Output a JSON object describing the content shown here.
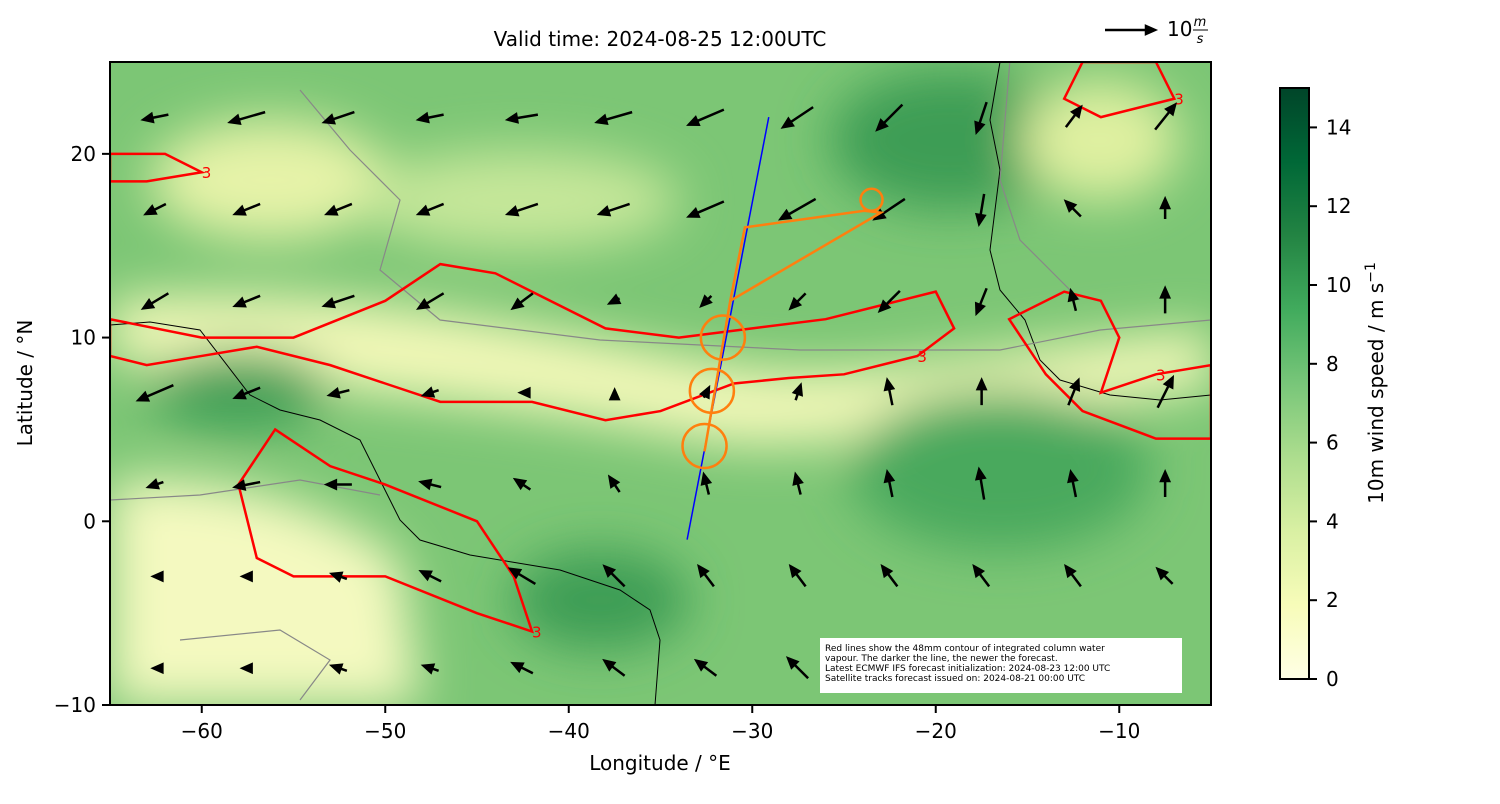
{
  "chart_data": {
    "type": "map",
    "title": "Valid time: 2024-08-25 12:00UTC",
    "xlabel": "Longitude / °E",
    "ylabel": "Latitude / °N",
    "xlim": [
      -65,
      -5
    ],
    "ylim": [
      -10,
      25
    ],
    "xticks": [
      {
        "value": -60,
        "label": "−60"
      },
      {
        "value": -50,
        "label": "−50"
      },
      {
        "value": -40,
        "label": "−40"
      },
      {
        "value": -30,
        "label": "−30"
      },
      {
        "value": -20,
        "label": "−20"
      },
      {
        "value": -10,
        "label": "−10"
      }
    ],
    "yticks": [
      {
        "value": -10,
        "label": "−10"
      },
      0,
      10,
      20
    ],
    "colorbar": {
      "label": "10m wind speed / m s",
      "label_sup": "−1",
      "lim": [
        0,
        15
      ],
      "ticks": [
        0,
        2,
        4,
        6,
        8,
        10,
        12,
        14
      ],
      "colors": [
        "#ffffe5",
        "#f7fcb9",
        "#d9f0a3",
        "#addd8e",
        "#78c679",
        "#41ab5d",
        "#238443",
        "#006837",
        "#004529"
      ]
    },
    "quiver_key": {
      "value": 10,
      "unit_top": "m",
      "unit_bottom": "s"
    },
    "wind": {
      "lons": [
        -62.5,
        -57.5,
        -52.5,
        -47.5,
        -42.5,
        -37.5,
        -32.5,
        -27.5,
        -22.5,
        -17.5,
        -12.5,
        -7.5
      ],
      "lats": [
        22,
        17,
        12,
        7,
        2,
        -3,
        -8
      ],
      "u": [
        [
          -5,
          -7,
          -6,
          -5,
          -6,
          -7,
          -7,
          -6,
          -5,
          -2,
          3,
          4
        ],
        [
          -4,
          -5,
          -5,
          -5,
          -6,
          -6,
          -7,
          -7,
          -6,
          -1,
          -3,
          0
        ],
        [
          -5,
          -5,
          -6,
          -5,
          -4,
          -2,
          -2,
          -3,
          -4,
          -2,
          -1,
          0
        ],
        [
          -7,
          -5,
          -4,
          -3,
          -1,
          0,
          1,
          1,
          -1,
          0,
          2,
          3
        ],
        [
          -3,
          -5,
          -5,
          -4,
          -3,
          -2,
          -1,
          -1,
          -1,
          -1,
          -1,
          0
        ],
        [
          -1,
          -2,
          -3,
          -4,
          -5,
          -4,
          -3,
          -3,
          -3,
          -3,
          -3,
          -3
        ],
        [
          -1,
          -2,
          -3,
          -3,
          -4,
          -4,
          -4,
          -4,
          -5,
          -5,
          -5,
          -5
        ]
      ],
      "v": [
        [
          -1,
          -2,
          -2,
          -1,
          -1,
          -2,
          -3,
          -4,
          -5,
          -6,
          4,
          5
        ],
        [
          -2,
          -2,
          -2,
          -2,
          -2,
          -2,
          -3,
          -4,
          -4,
          -6,
          3,
          4
        ],
        [
          -3,
          -2,
          -2,
          -3,
          -3,
          -1,
          -2,
          -3,
          -4,
          -5,
          4,
          5
        ],
        [
          -3,
          -2,
          -1,
          -1,
          0,
          1,
          2,
          3,
          5,
          5,
          5,
          6
        ],
        [
          -1,
          -1,
          0,
          1,
          2,
          3,
          4,
          4,
          5,
          6,
          5,
          5
        ],
        [
          0,
          0,
          1,
          2,
          3,
          4,
          4,
          4,
          4,
          4,
          4,
          3
        ],
        [
          0,
          0,
          1,
          1,
          2,
          3,
          3,
          4,
          4,
          3,
          3,
          3
        ]
      ]
    },
    "contours": {
      "level_label": "3",
      "color": "#ff0000",
      "paths": [
        [
          [
            -65,
            11
          ],
          [
            -60,
            10
          ],
          [
            -55,
            10
          ],
          [
            -50,
            12
          ],
          [
            -47,
            14
          ],
          [
            -44,
            13.5
          ],
          [
            -41,
            12
          ],
          [
            -38,
            10.5
          ],
          [
            -34,
            10
          ],
          [
            -30,
            10.5
          ],
          [
            -26,
            11
          ],
          [
            -22,
            12
          ],
          [
            -20,
            12.5
          ],
          [
            -19,
            10.5
          ],
          [
            -21,
            9
          ],
          [
            -25,
            8
          ],
          [
            -28,
            7.8
          ],
          [
            -31,
            7.5
          ],
          [
            -35,
            6
          ],
          [
            -38,
            5.5
          ],
          [
            -42,
            6.5
          ],
          [
            -47,
            6.5
          ],
          [
            -50,
            7.5
          ],
          [
            -53,
            8.5
          ],
          [
            -57,
            9.5
          ],
          [
            -60,
            9
          ],
          [
            -63,
            8.5
          ],
          [
            -65,
            9
          ]
        ],
        [
          [
            -56,
            5
          ],
          [
            -53,
            3
          ],
          [
            -50,
            2
          ],
          [
            -45,
            0
          ],
          [
            -43,
            -3
          ],
          [
            -42,
            -6
          ],
          [
            -45,
            -5
          ],
          [
            -50,
            -3
          ],
          [
            -55,
            -3
          ],
          [
            -57,
            -2
          ],
          [
            -58,
            2
          ]
        ],
        [
          [
            -16,
            11
          ],
          [
            -13,
            12.5
          ],
          [
            -11,
            12
          ],
          [
            -10,
            10
          ],
          [
            -11,
            7
          ],
          [
            -8,
            8
          ],
          [
            -5,
            8.5
          ],
          [
            -5,
            4.5
          ],
          [
            -8,
            4.5
          ],
          [
            -12,
            6
          ],
          [
            -14,
            8
          ]
        ],
        [
          [
            -65,
            20
          ],
          [
            -62,
            20
          ],
          [
            -60,
            19
          ],
          [
            -63,
            18.5
          ],
          [
            -65,
            18.5
          ]
        ],
        [
          [
            -12,
            25
          ],
          [
            -8,
            25
          ],
          [
            -7,
            23
          ],
          [
            -11,
            22
          ],
          [
            -13,
            23
          ]
        ]
      ]
    },
    "flight_track": {
      "color": "#ff7f0e",
      "lon": [
        -32.6,
        -31.2,
        -30.4,
        -23.9,
        -23.0,
        -31.2
      ],
      "lat": [
        3.8,
        12.0,
        16.0,
        16.9,
        16.8,
        12.0
      ]
    },
    "circles": {
      "color": "#ff7f0e",
      "lon": [
        -32.6,
        -32.2,
        -31.6,
        -23.5
      ],
      "lat": [
        4.1,
        7.1,
        10.0,
        17.5
      ],
      "radius": [
        1.2,
        1.2,
        1.2,
        0.6
      ]
    },
    "satellite_track": {
      "color": "#0000ff",
      "lon": [
        -33.55,
        -29.1
      ],
      "lat": [
        -1.0,
        22.0
      ]
    },
    "note": [
      "Red lines show the 48mm contour of integrated column water",
      "vapour. The darker the line, the newer the forecast.",
      "Latest ECMWF IFS forecast initialization: 2024-08-23 12:00 UTC",
      "Satellite tracks forecast issued on: 2024-08-21 00:00 UTC"
    ]
  }
}
